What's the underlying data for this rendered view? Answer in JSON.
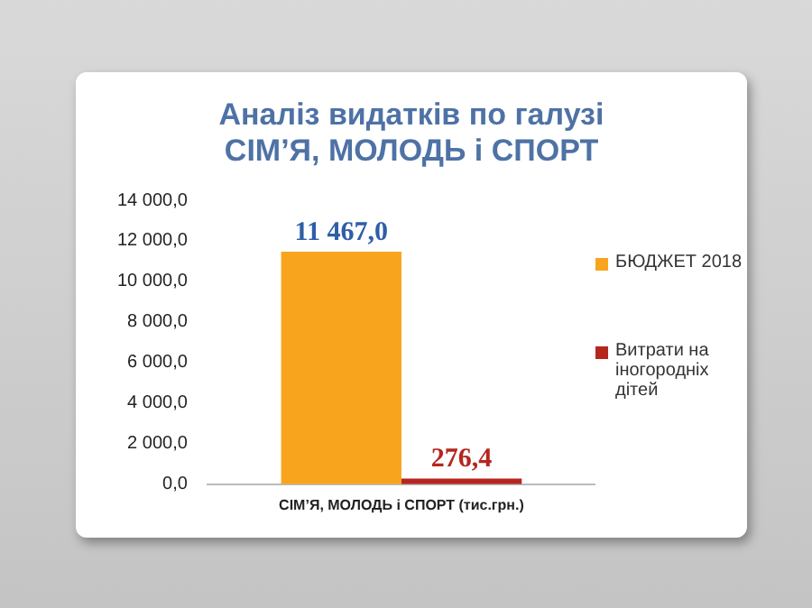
{
  "chart_data": {
    "type": "bar",
    "title": "Аналіз видатків по галузі\nСІМ’Я, МОЛОДЬ і СПОРТ",
    "categories": [
      "СІМ’Я, МОЛОДЬ і СПОРТ (тис.грн.)"
    ],
    "series": [
      {
        "name": "БЮДЖЕТ 2018",
        "color": "#f8a51d",
        "values": [
          11467.0
        ],
        "value_labels": [
          "11 467,0"
        ]
      },
      {
        "name": "Витрати на іногородніх дітей",
        "color": "#b5261e",
        "values": [
          276.4
        ],
        "value_labels": [
          "276,4"
        ]
      }
    ],
    "ylim": [
      0,
      14000
    ],
    "yticks": [
      {
        "value": 0,
        "label": "0,0"
      },
      {
        "value": 2000,
        "label": "2 000,0"
      },
      {
        "value": 4000,
        "label": "4 000,0"
      },
      {
        "value": 6000,
        "label": "6 000,0"
      },
      {
        "value": 8000,
        "label": "8 000,0"
      },
      {
        "value": 10000,
        "label": "10 000,0"
      },
      {
        "value": 12000,
        "label": "12 000,0"
      },
      {
        "value": 14000,
        "label": "14 000,0"
      }
    ],
    "grid": false,
    "legend": "right"
  }
}
